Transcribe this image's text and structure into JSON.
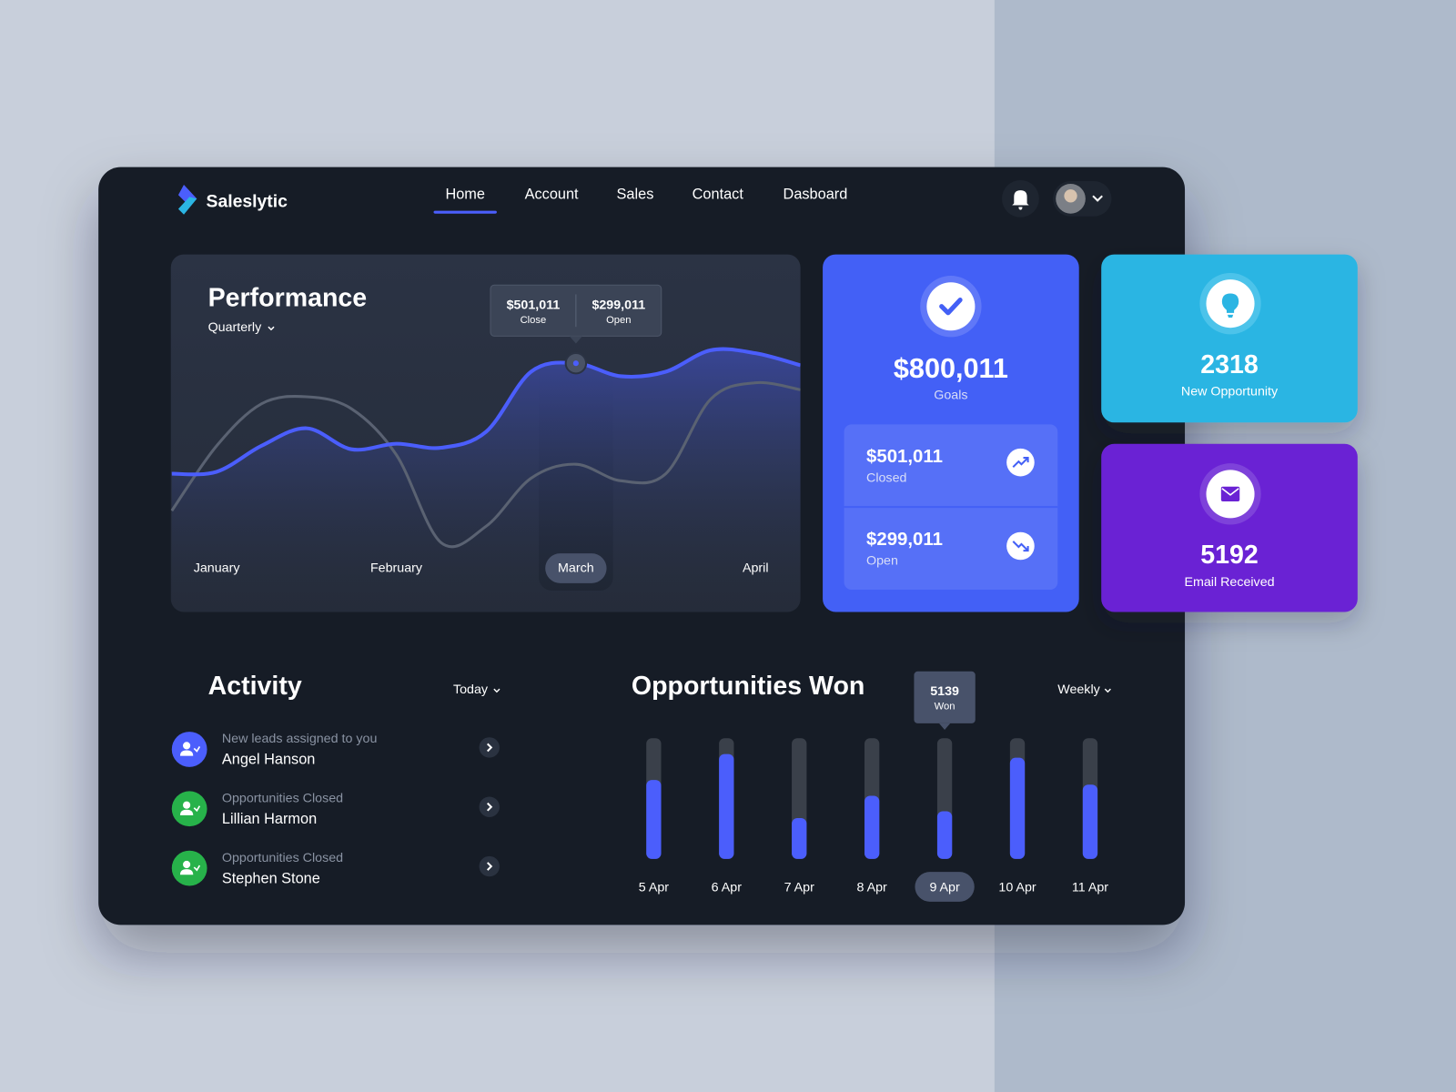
{
  "brand": "Saleslytic",
  "nav": [
    "Home",
    "Account",
    "Sales",
    "Contact",
    "Dasboard"
  ],
  "nav_active": 0,
  "chart_data": [
    {
      "type": "line",
      "title": "Performance",
      "subtitle": "Quarterly",
      "categories": [
        null,
        "January",
        null,
        null,
        null,
        "February",
        null,
        null,
        null,
        "March",
        null,
        null,
        null,
        "April",
        null
      ],
      "series": [
        {
          "name": "Close",
          "color": "#4b5efc",
          "values": [
            280000,
            284000,
            336000,
            371000,
            329000,
            340000,
            332000,
            364000,
            484000,
            501011,
            475000,
            484000,
            527000,
            521000,
            497000
          ],
          "value_labels": [
            null,
            null,
            null,
            null,
            null,
            null,
            null,
            null,
            null,
            "$501,011",
            null,
            null,
            null,
            null,
            null
          ]
        },
        {
          "name": "Open",
          "color": "#5a6272",
          "values": [
            206000,
            336000,
            420000,
            434000,
            410000,
            318000,
            142000,
            175000,
            271000,
            299011,
            266000,
            280000,
            429000,
            462000,
            448000
          ],
          "value_labels": [
            null,
            null,
            null,
            null,
            null,
            null,
            null,
            null,
            null,
            "$299,011",
            null,
            null,
            null,
            null,
            null
          ]
        }
      ],
      "ylim": [
        0,
        700000
      ]
    },
    {
      "type": "bar",
      "title": "Opportunities Won",
      "filter": "Weekly",
      "categories": [
        "5 Apr",
        "6 Apr",
        "7 Apr",
        "8 Apr",
        "9 Apr",
        "10 Apr",
        "11 Apr"
      ],
      "values": [
        8500,
        11300,
        4400,
        6800,
        5139,
        10900,
        8000
      ],
      "color": "#4b5efc",
      "ylim": [
        0,
        13000
      ],
      "tooltip_index": 4,
      "tooltip_label": "Won"
    }
  ],
  "goals": {
    "value": "$800,011",
    "label": "Goals",
    "items": [
      {
        "value": "$501,011",
        "label": "Closed"
      },
      {
        "value": "$299,011",
        "label": "Open"
      }
    ]
  },
  "stats": [
    {
      "value": "2318",
      "label": "New Opportunity"
    },
    {
      "value": "5192",
      "label": "Email Received"
    }
  ],
  "activity": {
    "title": "Activity",
    "filter": "Today",
    "items": [
      {
        "caption": "New leads assigned to you",
        "name": "Angel Hanson",
        "color": "#4b5efc"
      },
      {
        "caption": "Opportunities Closed",
        "name": "Lillian Harmon",
        "color": "#27b24a"
      },
      {
        "caption": "Opportunities Closed",
        "name": "Stephen Stone",
        "color": "#27b24a"
      }
    ]
  }
}
